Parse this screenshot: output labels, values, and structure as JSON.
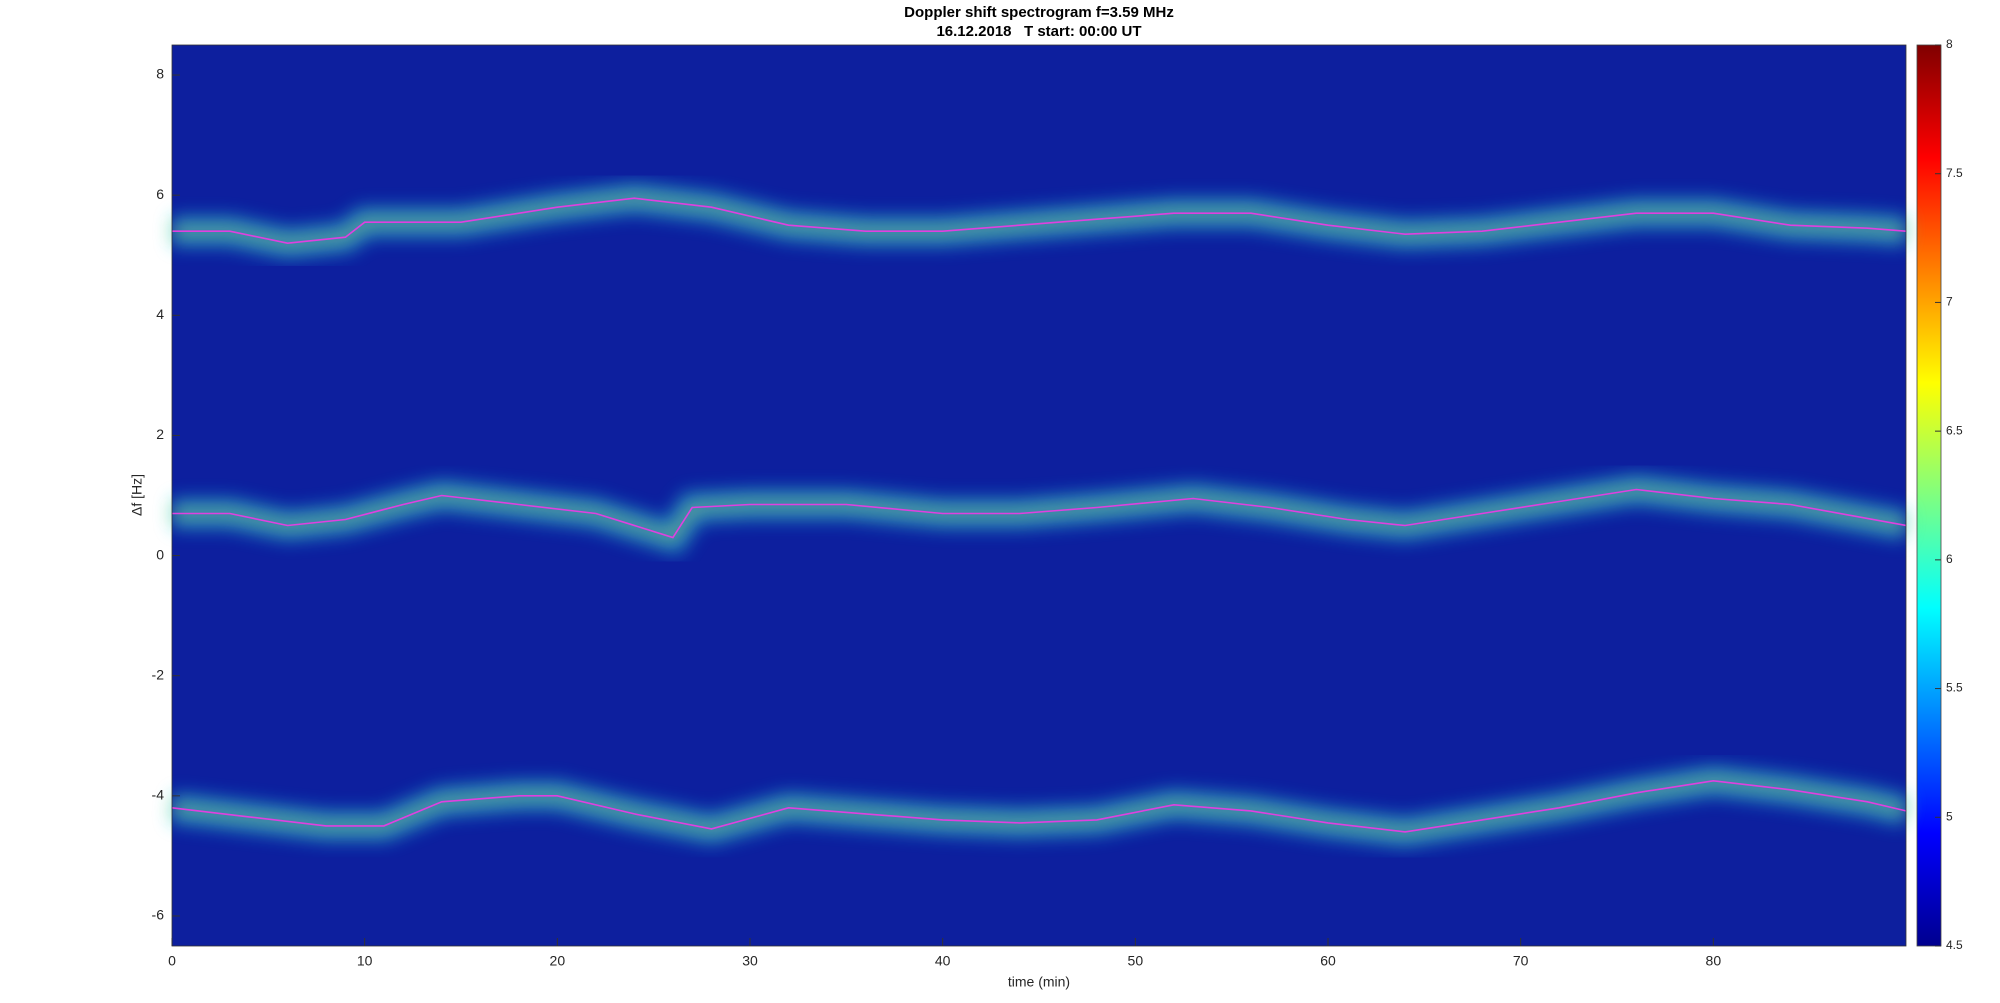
{
  "chart_data": {
    "type": "spectrogram",
    "title": "Doppler shift spectrogram f=3.59 MHz",
    "subtitle": "16.12.2018   T start: 00:00 UT",
    "xlabel": "time (min)",
    "ylabel": "Δf [Hz]",
    "xlim": [
      0,
      90
    ],
    "xticks": [
      0,
      10,
      20,
      30,
      40,
      50,
      60,
      70,
      80
    ],
    "ylim": [
      -6.5,
      8.5
    ],
    "yticks": [
      -6,
      -4,
      -2,
      0,
      2,
      4,
      6,
      8
    ],
    "background": "#0d1f9e",
    "colorbar": {
      "clim": [
        4.5,
        8
      ],
      "ticks": [
        4.5,
        5,
        5.5,
        6,
        6.5,
        7,
        7.5,
        8
      ]
    },
    "series": [
      {
        "color": "#e040e0",
        "x": [
          0,
          3,
          6,
          9,
          10,
          15,
          20,
          24,
          28,
          32,
          36,
          40,
          44,
          48,
          52,
          56,
          60,
          64,
          68,
          72,
          76,
          80,
          84,
          88,
          90
        ],
        "values": [
          5.4,
          5.4,
          5.2,
          5.3,
          5.55,
          5.55,
          5.8,
          5.95,
          5.8,
          5.5,
          5.4,
          5.4,
          5.5,
          5.6,
          5.7,
          5.7,
          5.5,
          5.35,
          5.4,
          5.55,
          5.7,
          5.7,
          5.5,
          5.45,
          5.4
        ]
      },
      {
        "color": "#e040e0",
        "x": [
          0,
          3,
          6,
          9,
          12,
          14,
          18,
          22,
          26,
          27,
          30,
          35,
          40,
          44,
          48,
          53,
          57,
          61,
          64,
          68,
          72,
          76,
          80,
          84,
          90
        ],
        "values": [
          0.7,
          0.7,
          0.5,
          0.6,
          0.85,
          1.0,
          0.85,
          0.7,
          0.3,
          0.8,
          0.85,
          0.85,
          0.7,
          0.7,
          0.8,
          0.95,
          0.8,
          0.6,
          0.5,
          0.7,
          0.9,
          1.1,
          0.95,
          0.85,
          0.5
        ]
      },
      {
        "color": "#e040e0",
        "x": [
          0,
          4,
          8,
          11,
          14,
          18,
          20,
          24,
          28,
          32,
          36,
          40,
          44,
          48,
          52,
          56,
          60,
          64,
          68,
          72,
          76,
          80,
          84,
          88,
          90
        ],
        "values": [
          -4.2,
          -4.35,
          -4.5,
          -4.5,
          -4.1,
          -4.0,
          -4.0,
          -4.3,
          -4.55,
          -4.2,
          -4.3,
          -4.4,
          -4.45,
          -4.4,
          -4.15,
          -4.25,
          -4.45,
          -4.6,
          -4.4,
          -4.2,
          -3.95,
          -3.75,
          -3.9,
          -4.1,
          -4.25
        ]
      }
    ]
  }
}
